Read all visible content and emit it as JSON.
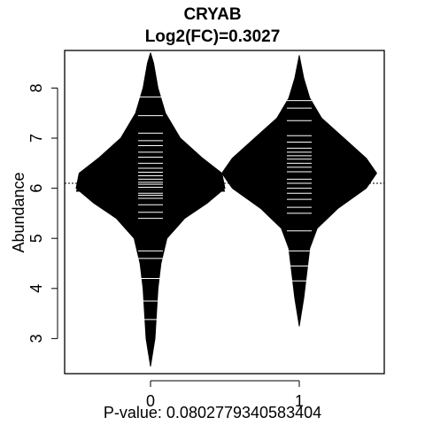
{
  "chart_data": {
    "type": "beanplot",
    "title": "CRYAB",
    "subtitle": "Log2(FC)=0.3027",
    "ylabel": "Abundance",
    "xlabel": "P-value: 0.0802779340583404",
    "categories": [
      "0",
      "1"
    ],
    "ylim": [
      2.3,
      8.75
    ],
    "y_ticks": [
      3,
      4,
      5,
      6,
      7,
      8
    ],
    "overall_mean": 6.1,
    "groups": [
      {
        "name": "0",
        "mean": 5.95,
        "range": [
          2.45,
          8.7
        ],
        "density": [
          [
            2.45,
            0.0
          ],
          [
            3.0,
            0.03
          ],
          [
            3.5,
            0.04
          ],
          [
            4.0,
            0.05
          ],
          [
            4.5,
            0.07
          ],
          [
            5.0,
            0.11
          ],
          [
            5.4,
            0.23
          ],
          [
            5.7,
            0.38
          ],
          [
            6.0,
            0.5
          ],
          [
            6.3,
            0.48
          ],
          [
            6.6,
            0.35
          ],
          [
            7.0,
            0.2
          ],
          [
            7.5,
            0.1
          ],
          [
            8.0,
            0.05
          ],
          [
            8.5,
            0.02
          ],
          [
            8.7,
            0.0
          ]
        ],
        "observations": [
          3.38,
          3.75,
          4.2,
          4.6,
          4.75,
          5.4,
          5.52,
          5.67,
          5.8,
          5.86,
          5.9,
          5.96,
          6.02,
          6.08,
          6.12,
          6.18,
          6.25,
          6.32,
          6.4,
          6.5,
          6.62,
          6.72,
          6.85,
          6.95,
          7.1,
          7.45,
          7.82
        ]
      },
      {
        "name": "1",
        "mean": 6.25,
        "range": [
          3.25,
          8.65
        ],
        "density": [
          [
            3.25,
            0.0
          ],
          [
            3.8,
            0.03
          ],
          [
            4.3,
            0.05
          ],
          [
            4.8,
            0.07
          ],
          [
            5.2,
            0.12
          ],
          [
            5.6,
            0.26
          ],
          [
            6.0,
            0.45
          ],
          [
            6.3,
            0.52
          ],
          [
            6.6,
            0.45
          ],
          [
            7.0,
            0.3
          ],
          [
            7.4,
            0.15
          ],
          [
            7.8,
            0.07
          ],
          [
            8.2,
            0.03
          ],
          [
            8.65,
            0.0
          ]
        ],
        "observations": [
          4.15,
          4.45,
          4.75,
          5.15,
          5.5,
          5.62,
          5.78,
          5.9,
          6.0,
          6.1,
          6.18,
          6.25,
          6.33,
          6.42,
          6.5,
          6.58,
          6.65,
          6.72,
          6.8,
          6.92,
          7.05,
          7.35,
          7.6,
          7.75
        ]
      }
    ]
  }
}
